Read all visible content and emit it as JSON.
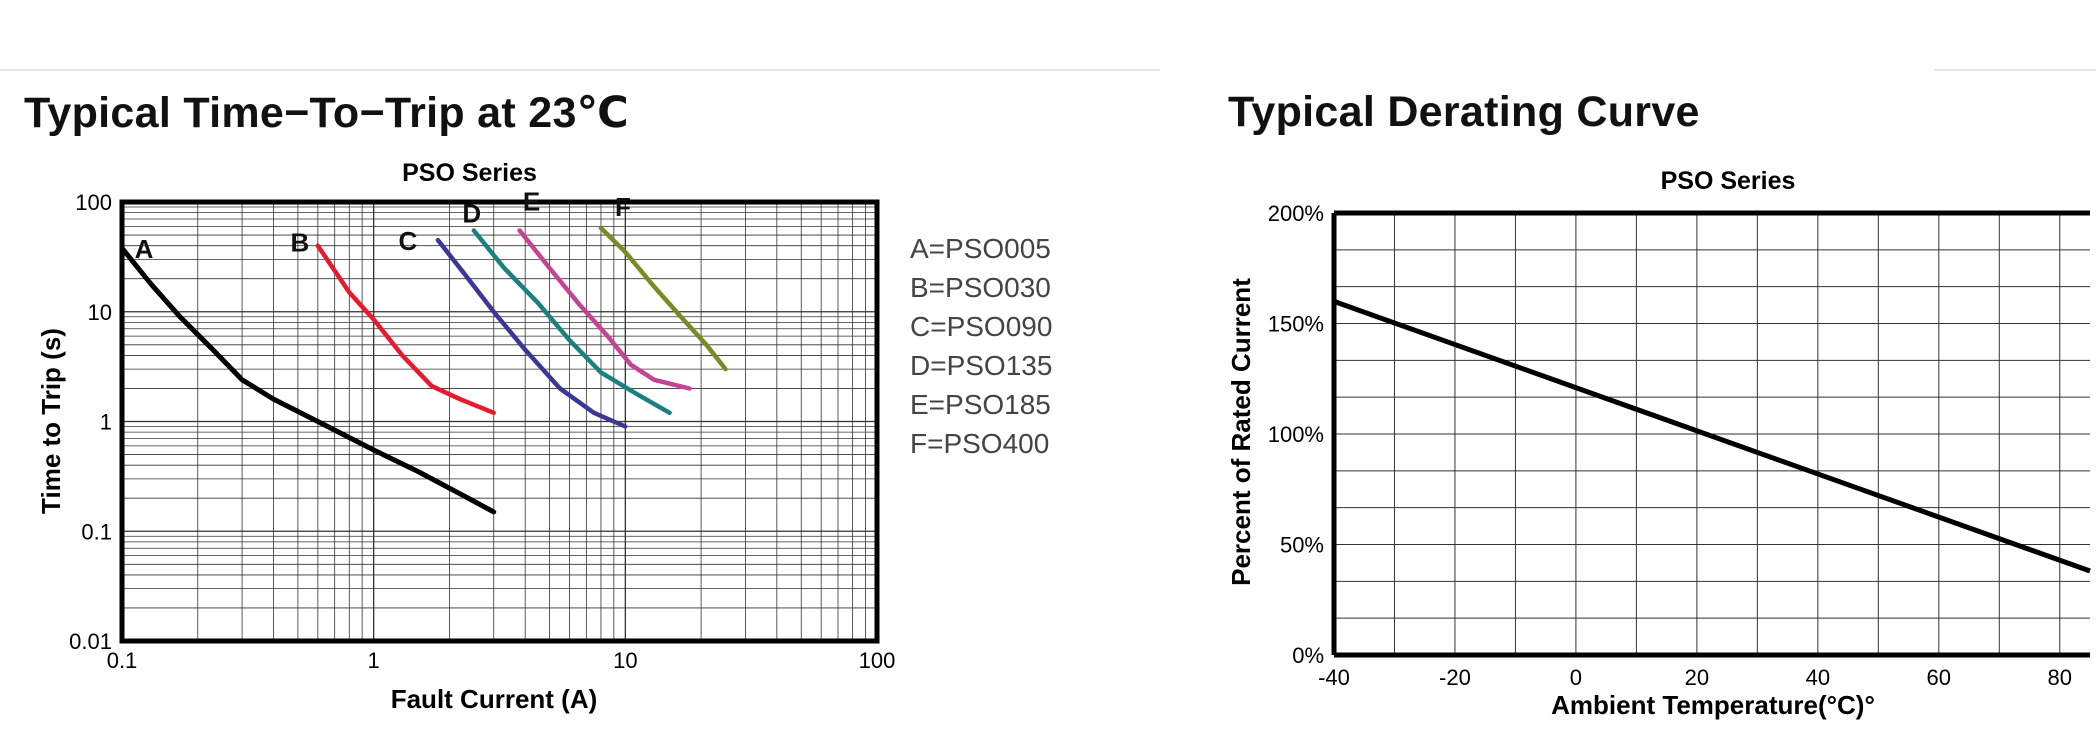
{
  "headings": {
    "left": "Typical Time−To−Trip at 23℃",
    "right": "Typical Derating Curve"
  },
  "chart_data": [
    {
      "type": "line",
      "title": "PSO Series",
      "xlabel": "Fault Current (A)",
      "ylabel": "Time to Trip (s)",
      "xscale": "log",
      "yscale": "log",
      "xlim": [
        0.1,
        100
      ],
      "ylim": [
        0.01,
        100
      ],
      "xticks": [
        0.1,
        1,
        10,
        100
      ],
      "xtick_labels": [
        "0.1",
        "1",
        "10",
        "100"
      ],
      "yticks": [
        100,
        10,
        1,
        0.1,
        0.01
      ],
      "ytick_labels": [
        "100",
        "10",
        "1",
        "0.1",
        "0.01"
      ],
      "grid": true,
      "legend_position": "right",
      "legend": [
        "A=PSO005",
        "B=PSO030",
        "C=PSO090",
        "D=PSO135",
        "E=PSO185",
        "F=PSO400"
      ],
      "series": [
        {
          "name": "A",
          "color": "#000000",
          "x": [
            0.1,
            0.13,
            0.17,
            0.23,
            0.3,
            0.4,
            0.6,
            1.0,
            1.5,
            2.2,
            3.0
          ],
          "y": [
            38,
            18,
            9,
            4.5,
            2.4,
            1.6,
            1.0,
            0.55,
            0.35,
            0.22,
            0.15
          ]
        },
        {
          "name": "B",
          "color": "#e8192c",
          "x": [
            0.6,
            0.8,
            1.0,
            1.3,
            1.7,
            2.2,
            3.0
          ],
          "y": [
            40,
            15,
            8.5,
            4.0,
            2.1,
            1.6,
            1.2
          ]
        },
        {
          "name": "C",
          "color": "#3b3794",
          "x": [
            1.8,
            2.3,
            3.0,
            4.0,
            5.5,
            7.5,
            10
          ],
          "y": [
            45,
            22,
            10,
            4.5,
            2.0,
            1.2,
            0.9
          ]
        },
        {
          "name": "D",
          "color": "#1a8080",
          "x": [
            2.5,
            3.3,
            4.5,
            6.0,
            8.0,
            11,
            15
          ],
          "y": [
            55,
            25,
            12,
            5.5,
            2.8,
            1.8,
            1.2
          ]
        },
        {
          "name": "E",
          "color": "#c44394",
          "x": [
            3.8,
            5.0,
            6.5,
            8.5,
            10.5,
            13,
            18
          ],
          "y": [
            55,
            25,
            12,
            6.0,
            3.3,
            2.4,
            2.0
          ]
        },
        {
          "name": "F",
          "color": "#7a8a24",
          "x": [
            8.0,
            10,
            13,
            17,
            21,
            25
          ],
          "y": [
            58,
            35,
            17,
            8.5,
            5.0,
            3.0
          ]
        }
      ]
    },
    {
      "type": "line",
      "title": "PSO Series",
      "xlabel": "Ambient Temperature(°C)°",
      "ylabel": "Percent of Rated Current",
      "xlim": [
        -40,
        85
      ],
      "ylim": [
        0,
        200
      ],
      "xticks": [
        -40,
        -20,
        0,
        20,
        40,
        60,
        80
      ],
      "xtick_labels": [
        "-40",
        "-20",
        "0",
        "20",
        "40",
        "60",
        "80"
      ],
      "yticks": [
        200,
        150,
        100,
        50,
        0
      ],
      "ytick_labels": [
        "200%",
        "150%",
        "100%",
        "50%",
        "0%"
      ],
      "grid": true,
      "series": [
        {
          "color": "#000000",
          "x": [
            -40,
            85
          ],
          "y": [
            160,
            38
          ]
        }
      ]
    }
  ]
}
